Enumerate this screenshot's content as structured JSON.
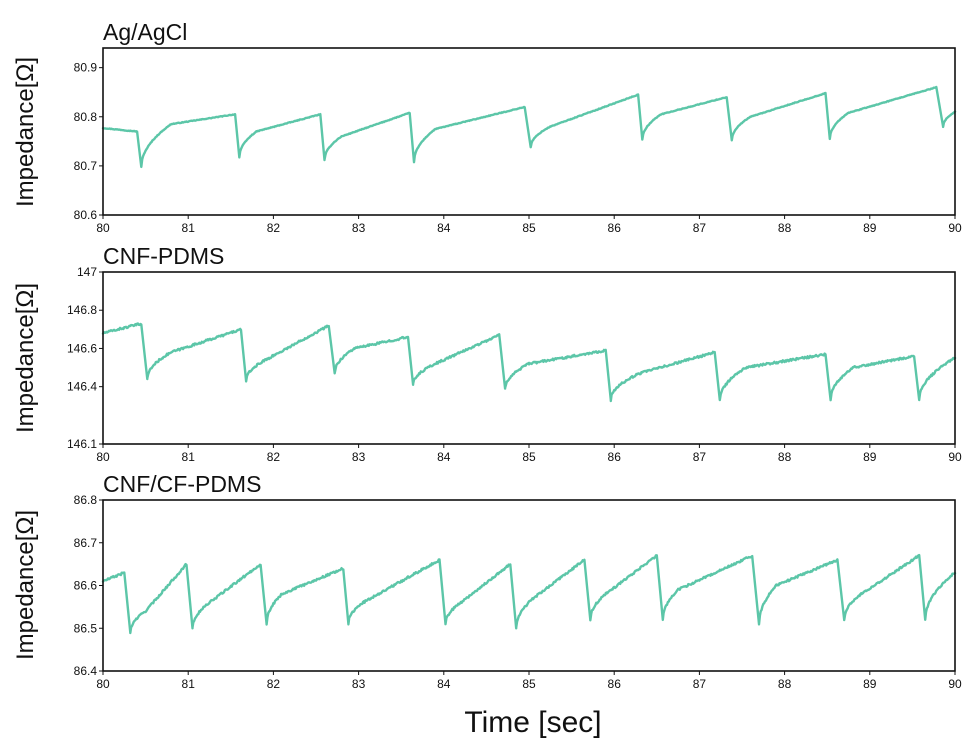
{
  "colors": {
    "series": "#5cc6a8",
    "axis": "#111111",
    "background": "#ffffff"
  },
  "xlabel": "Time [sec]",
  "chart_data": [
    {
      "type": "line",
      "title": "Ag/AgCl",
      "ylabel": "Impedance[Ω]",
      "xlim": [
        80,
        90
      ],
      "ylim": [
        80.6,
        80.94
      ],
      "xticks": [
        "80",
        "81",
        "82",
        "83",
        "84",
        "85",
        "86",
        "87",
        "88",
        "89",
        "90"
      ],
      "yticks": [
        "80.6",
        "80.7",
        "80.8",
        "80.9"
      ],
      "grid": false,
      "beats": [
        [
          80.0,
          80.777,
          80.4,
          80.77,
          80.45,
          80.698,
          80.8,
          80.785
        ],
        [
          80.8,
          80.785,
          81.55,
          80.805,
          81.6,
          80.718,
          81.8,
          80.77
        ],
        [
          81.8,
          80.77,
          82.55,
          80.805,
          82.6,
          80.712,
          82.8,
          80.76
        ],
        [
          82.8,
          80.76,
          83.6,
          80.808,
          83.65,
          80.708,
          83.9,
          80.775
        ],
        [
          83.9,
          80.775,
          84.95,
          80.82,
          85.02,
          80.738,
          85.25,
          80.78
        ],
        [
          85.25,
          80.78,
          86.28,
          80.845,
          86.33,
          80.754,
          86.55,
          80.805
        ],
        [
          86.55,
          80.805,
          87.32,
          80.84,
          87.38,
          80.752,
          87.6,
          80.8
        ],
        [
          87.6,
          80.8,
          88.48,
          80.848,
          88.53,
          80.755,
          88.75,
          80.808
        ],
        [
          88.75,
          80.808,
          89.78,
          80.86,
          89.86,
          80.78,
          90.0,
          80.81
        ]
      ]
    },
    {
      "type": "line",
      "title": "CNF-PDMS",
      "ylabel": "Impedance[Ω]",
      "xlim": [
        80,
        90
      ],
      "ylim": [
        146.1,
        147
      ],
      "xticks": [
        "80",
        "81",
        "82",
        "83",
        "84",
        "85",
        "86",
        "87",
        "88",
        "89",
        "90"
      ],
      "yticks": [
        "146.1",
        "146.4",
        "146.6",
        "146.8",
        "147"
      ],
      "grid": false,
      "beats": [
        [
          80.0,
          146.68,
          80.45,
          146.73,
          80.52,
          146.44,
          80.8,
          146.58
        ],
        [
          80.8,
          146.58,
          81.62,
          146.7,
          81.68,
          146.43,
          81.95,
          146.55
        ],
        [
          81.95,
          146.55,
          82.65,
          146.72,
          82.72,
          146.47,
          82.95,
          146.6
        ],
        [
          82.95,
          146.6,
          83.58,
          146.66,
          83.64,
          146.41,
          83.9,
          146.52
        ],
        [
          83.9,
          146.52,
          84.65,
          146.67,
          84.72,
          146.39,
          85.0,
          146.52
        ],
        [
          85.0,
          146.52,
          85.9,
          146.59,
          85.96,
          146.33,
          86.3,
          146.47
        ],
        [
          86.3,
          146.47,
          87.18,
          146.58,
          87.24,
          146.33,
          87.55,
          146.5
        ],
        [
          87.55,
          146.5,
          88.48,
          146.57,
          88.54,
          146.33,
          88.8,
          146.5
        ],
        [
          88.8,
          146.5,
          89.52,
          146.56,
          89.58,
          146.33,
          90.0,
          146.55
        ]
      ]
    },
    {
      "type": "line",
      "title": "CNF/CF-PDMS",
      "ylabel": "Impedance[Ω]",
      "xlim": [
        80,
        90
      ],
      "ylim": [
        86.4,
        86.8
      ],
      "xticks": [
        "80",
        "81",
        "82",
        "83",
        "84",
        "85",
        "86",
        "87",
        "88",
        "89",
        "90"
      ],
      "yticks": [
        "86.4",
        "86.5",
        "86.6",
        "86.7",
        "86.8"
      ],
      "grid": false,
      "beats": [
        [
          80.0,
          86.61,
          80.25,
          86.63,
          80.32,
          86.49,
          80.5,
          86.54
        ],
        [
          80.5,
          86.54,
          80.98,
          86.65,
          81.05,
          86.5,
          81.25,
          86.56
        ],
        [
          81.25,
          86.56,
          81.85,
          86.65,
          81.92,
          86.51,
          82.1,
          86.58
        ],
        [
          82.1,
          86.58,
          82.82,
          86.64,
          82.88,
          86.51,
          83.05,
          86.56
        ],
        [
          83.05,
          86.56,
          83.95,
          86.66,
          84.02,
          86.51,
          84.2,
          86.56
        ],
        [
          84.2,
          86.56,
          84.78,
          86.65,
          84.85,
          86.5,
          85.05,
          86.57
        ],
        [
          85.05,
          86.57,
          85.65,
          86.66,
          85.72,
          86.52,
          85.9,
          86.58
        ],
        [
          85.9,
          86.58,
          86.5,
          86.67,
          86.57,
          86.52,
          86.75,
          86.59
        ],
        [
          86.75,
          86.59,
          87.62,
          86.67,
          87.7,
          86.51,
          87.9,
          86.6
        ],
        [
          87.9,
          86.6,
          88.62,
          86.66,
          88.7,
          86.52,
          88.9,
          86.58
        ],
        [
          88.9,
          86.58,
          89.58,
          86.67,
          89.65,
          86.52,
          90.0,
          86.63
        ]
      ]
    }
  ]
}
